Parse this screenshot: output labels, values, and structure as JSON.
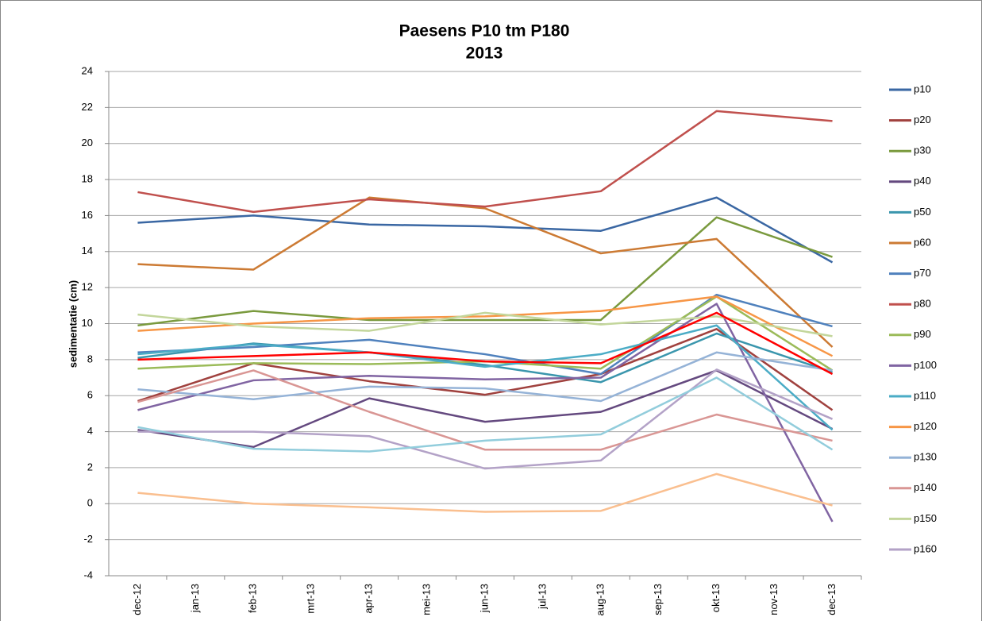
{
  "chart_data": {
    "type": "line",
    "title": "Paesens P10 tm P180",
    "subtitle": "2013",
    "y_label": "sedimentatie (cm)",
    "xticks": [
      "dec-12",
      "jan-13",
      "feb-13",
      "mrt-13",
      "apr-13",
      "mei-13",
      "jun-13",
      "jul-13",
      "aug-13",
      "sep-13",
      "okt-13",
      "nov-13",
      "dec-13"
    ],
    "x": [
      "dec-12",
      "feb-13",
      "apr-13",
      "jun-13",
      "aug-13",
      "okt-13",
      "dec-13"
    ],
    "ylim": [
      -4,
      24
    ],
    "yticks": [
      -4,
      -2,
      0,
      2,
      4,
      6,
      8,
      10,
      12,
      14,
      16,
      18,
      20,
      22,
      24
    ],
    "grid": true,
    "series": [
      {
        "name": "p10",
        "color": "#3a67a3",
        "values": [
          15.6,
          16.0,
          15.5,
          15.4,
          15.15,
          17.0,
          13.4
        ]
      },
      {
        "name": "p20",
        "color": "#a0413e",
        "values": [
          5.7,
          7.8,
          6.8,
          6.05,
          7.2,
          9.7,
          5.2
        ]
      },
      {
        "name": "p30",
        "color": "#7a9a3e",
        "values": [
          9.9,
          10.7,
          10.2,
          10.2,
          10.2,
          15.9,
          13.7
        ]
      },
      {
        "name": "p40",
        "color": "#64497f",
        "values": [
          4.1,
          3.15,
          5.85,
          4.55,
          5.1,
          7.4,
          4.15
        ]
      },
      {
        "name": "p50",
        "color": "#3a96ad",
        "values": [
          8.1,
          8.9,
          8.4,
          7.7,
          6.75,
          9.45,
          7.3
        ]
      },
      {
        "name": "p60",
        "color": "#cc7a33",
        "values": [
          13.3,
          13.0,
          17.0,
          16.4,
          13.9,
          14.7,
          8.7
        ]
      },
      {
        "name": "p70",
        "color": "#4f81bd",
        "values": [
          8.4,
          8.7,
          9.1,
          8.3,
          7.2,
          11.6,
          9.85
        ]
      },
      {
        "name": "p80",
        "color": "#c0504d",
        "values": [
          17.3,
          16.2,
          16.9,
          16.5,
          17.35,
          21.8,
          21.25
        ]
      },
      {
        "name": "p90",
        "color": "#9bbb59",
        "values": [
          7.5,
          7.8,
          7.75,
          7.9,
          7.5,
          11.5,
          7.4
        ]
      },
      {
        "name": "p100",
        "color": "#8064a2",
        "values": [
          5.2,
          6.85,
          7.1,
          6.9,
          7.0,
          11.1,
          -1.0
        ]
      },
      {
        "name": "p110",
        "color": "#4bacc6",
        "values": [
          8.3,
          8.85,
          8.4,
          7.6,
          8.3,
          9.9,
          4.1
        ]
      },
      {
        "name": "p120",
        "color": "#f79646",
        "values": [
          9.6,
          10.0,
          10.3,
          10.4,
          10.7,
          11.5,
          8.2
        ]
      },
      {
        "name": "p130",
        "color": "#95b3d7",
        "values": [
          6.35,
          5.8,
          6.5,
          6.4,
          5.7,
          8.4,
          7.4
        ]
      },
      {
        "name": "p140",
        "color": "#d99694",
        "values": [
          5.65,
          7.4,
          5.1,
          3.0,
          3.0,
          4.95,
          3.5
        ]
      },
      {
        "name": "p150",
        "color": "#c3d69b",
        "values": [
          10.5,
          9.85,
          9.6,
          10.6,
          9.95,
          10.4,
          9.3
        ]
      },
      {
        "name": "p160",
        "color": "#b3a2c7",
        "values": [
          4.0,
          4.0,
          3.75,
          1.95,
          2.4,
          7.45,
          4.7
        ]
      },
      {
        "color": "#92cddc",
        "values": [
          4.25,
          3.05,
          2.9,
          3.5,
          3.85,
          7.0,
          3.0
        ]
      },
      {
        "color": "#fabf8f",
        "values": [
          0.6,
          0.0,
          -0.2,
          -0.45,
          -0.4,
          1.65,
          -0.1
        ]
      },
      {
        "color": "#ff0000",
        "values": [
          8.0,
          8.2,
          8.4,
          7.9,
          7.8,
          10.6,
          7.2
        ]
      }
    ]
  }
}
